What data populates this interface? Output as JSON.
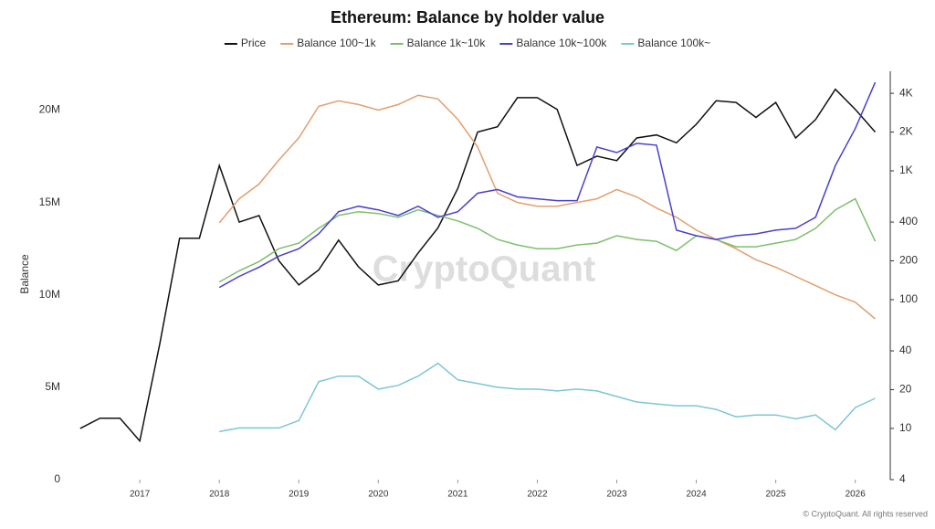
{
  "chart_data": {
    "type": "line",
    "title": "Ethereum: Balance by holder value",
    "ylabel": "Balance",
    "watermark": "CryptoQuant",
    "footer": "© CryptoQuant. All rights reserved",
    "x": [
      2016.25,
      2016.5,
      2016.75,
      2017.0,
      2017.25,
      2017.5,
      2017.75,
      2018.0,
      2018.25,
      2018.5,
      2018.75,
      2019.0,
      2019.25,
      2019.5,
      2019.75,
      2020.0,
      2020.25,
      2020.5,
      2020.75,
      2021.0,
      2021.25,
      2021.5,
      2021.75,
      2022.0,
      2022.25,
      2022.5,
      2022.75,
      2023.0,
      2023.25,
      2023.5,
      2023.75,
      2024.0,
      2024.25,
      2024.5,
      2024.75,
      2025.0,
      2025.25,
      2025.5,
      2025.75,
      2026.0,
      2026.25
    ],
    "xlim": [
      2016.16,
      2026.44
    ],
    "xticks": [
      2017,
      2018,
      2019,
      2020,
      2021,
      2022,
      2023,
      2024,
      2025,
      2026
    ],
    "ylim": [
      0,
      22100000
    ],
    "yticks": [
      {
        "value": 0,
        "label": "0"
      },
      {
        "value": 5000000,
        "label": "5M"
      },
      {
        "value": 10000000,
        "label": "10M"
      },
      {
        "value": 15000000,
        "label": "15M"
      },
      {
        "value": 20000000,
        "label": "20M"
      }
    ],
    "y2lim": [
      4,
      5930
    ],
    "y2log": true,
    "y2ticks": [
      4,
      10,
      20,
      40,
      100,
      200,
      400,
      {
        "value": 1000,
        "label": "1K"
      },
      {
        "value": 2000,
        "label": "2K"
      },
      {
        "value": 4000,
        "label": "4K"
      }
    ],
    "series": [
      {
        "name": "Price",
        "color": "#111111",
        "axis": "y2",
        "values": [
          10,
          12,
          12,
          8,
          45,
          300,
          300,
          1100,
          400,
          450,
          200,
          130,
          170,
          290,
          180,
          130,
          140,
          230,
          360,
          730,
          2000,
          2200,
          3700,
          3700,
          3000,
          1100,
          1300,
          1200,
          1800,
          1900,
          1650,
          2300,
          3500,
          3400,
          2600,
          3400,
          1800,
          2500,
          4300,
          3000,
          2000
        ]
      },
      {
        "name": "Balance 100~1k",
        "color": "#e0a070",
        "values": [
          null,
          null,
          null,
          null,
          null,
          null,
          null,
          13900000,
          15200000,
          16000000,
          17300000,
          18500000,
          20200000,
          20500000,
          20300000,
          20000000,
          20300000,
          20800000,
          20600000,
          19500000,
          18000000,
          15500000,
          15000000,
          14800000,
          14800000,
          15000000,
          15200000,
          15700000,
          15300000,
          14700000,
          14200000,
          13500000,
          13000000,
          12500000,
          11900000,
          11500000,
          11000000,
          10500000,
          10000000,
          9600000,
          8700000
        ]
      },
      {
        "name": "Balance 1k~10k",
        "color": "#7cc06a",
        "values": [
          null,
          null,
          null,
          null,
          null,
          null,
          null,
          10700000,
          11300000,
          11800000,
          12500000,
          12800000,
          13600000,
          14300000,
          14500000,
          14400000,
          14200000,
          14600000,
          14300000,
          14000000,
          13600000,
          13000000,
          12700000,
          12500000,
          12500000,
          12700000,
          12800000,
          13200000,
          13000000,
          12900000,
          12400000,
          13200000,
          13000000,
          12600000,
          12600000,
          12800000,
          13000000,
          13600000,
          14600000,
          15200000,
          12900000
        ]
      },
      {
        "name": "Balance 10k~100k",
        "color": "#4a3fcf",
        "values": [
          null,
          null,
          null,
          null,
          null,
          null,
          null,
          10400000,
          11000000,
          11500000,
          12100000,
          12500000,
          13300000,
          14500000,
          14800000,
          14600000,
          14300000,
          14800000,
          14200000,
          14500000,
          15500000,
          15700000,
          15300000,
          15200000,
          15100000,
          15100000,
          18000000,
          17700000,
          18200000,
          18100000,
          13500000,
          13200000,
          13000000,
          13200000,
          13300000,
          13500000,
          13600000,
          14200000,
          17000000,
          19000000,
          21500000
        ]
      },
      {
        "name": "Balance 100k~",
        "color": "#7cc6d6",
        "values": [
          null,
          null,
          null,
          null,
          null,
          null,
          null,
          2600000,
          2800000,
          2800000,
          2800000,
          3200000,
          5300000,
          5600000,
          5600000,
          4900000,
          5100000,
          5600000,
          6300000,
          5400000,
          5200000,
          5000000,
          4900000,
          4900000,
          4800000,
          4900000,
          4800000,
          4500000,
          4200000,
          4100000,
          4000000,
          4000000,
          3800000,
          3400000,
          3500000,
          3500000,
          3300000,
          3500000,
          2700000,
          3900000,
          4400000
        ]
      }
    ]
  }
}
